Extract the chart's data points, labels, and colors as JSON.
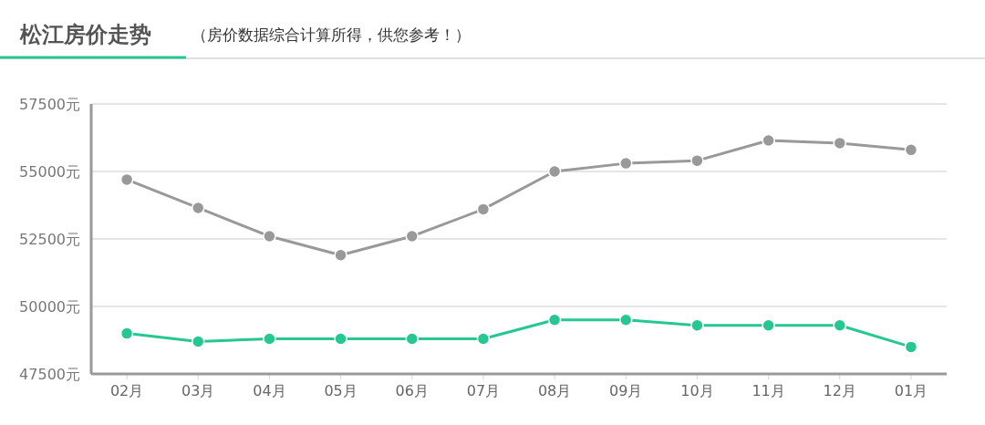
{
  "chart_data": {
    "type": "line",
    "title": "松江房价走势",
    "subtitle": "（房价数据综合计算所得，供您参考！）",
    "categories": [
      "02月",
      "03月",
      "04月",
      "05月",
      "06月",
      "07月",
      "08月",
      "09月",
      "10月",
      "11月",
      "12月",
      "01月"
    ],
    "series": [
      {
        "color": "#999999",
        "values": [
          54700,
          53650,
          52600,
          51900,
          52600,
          53600,
          55000,
          55300,
          55400,
          56150,
          56050,
          55800
        ]
      },
      {
        "color": "#26c791",
        "values": [
          49000,
          48700,
          48800,
          48800,
          48800,
          48800,
          49500,
          49500,
          49300,
          49300,
          49300,
          48500
        ]
      }
    ],
    "ylim": [
      47500,
      57500
    ],
    "yticks": [
      {
        "value": 47500,
        "label": "47500元"
      },
      {
        "value": 50000,
        "label": "50000元"
      },
      {
        "value": 52500,
        "label": "52500元"
      },
      {
        "value": 55000,
        "label": "55000元"
      },
      {
        "value": 57500,
        "label": "57500元"
      }
    ],
    "grid": "y",
    "marker": "circle",
    "line_style": "solid"
  }
}
